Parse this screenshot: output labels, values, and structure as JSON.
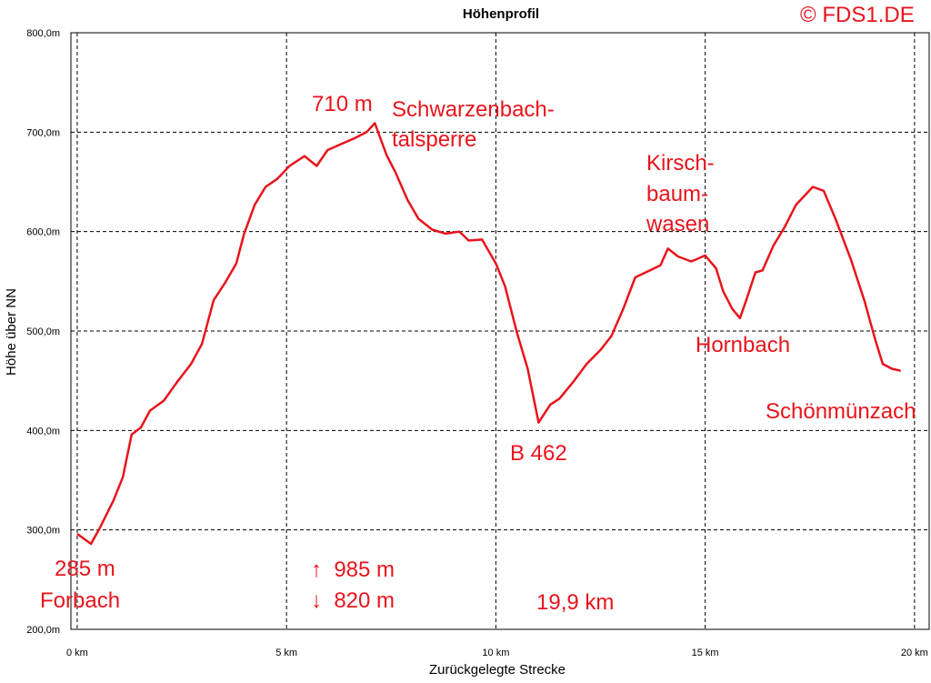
{
  "chart_data": {
    "type": "line",
    "title": "Höhenprofil",
    "x_label": "Zurückgelegte Strecke",
    "y_label": "Höhe über NN",
    "x": [
      0,
      0.33,
      0.54,
      0.87,
      1.09,
      1.3,
      1.52,
      1.74,
      2.07,
      2.39,
      2.72,
      2.98,
      3.26,
      3.54,
      3.8,
      3.98,
      4.24,
      4.5,
      4.78,
      5.07,
      5.43,
      5.72,
      5.98,
      6.3,
      6.63,
      6.91,
      7.11,
      7.39,
      7.61,
      7.89,
      8.15,
      8.48,
      8.8,
      9.13,
      9.35,
      9.67,
      10.0,
      10.22,
      10.5,
      10.76,
      11.02,
      11.3,
      11.52,
      11.85,
      12.17,
      12.5,
      12.76,
      13.04,
      13.33,
      13.63,
      13.93,
      14.11,
      14.35,
      14.67,
      15.0,
      15.26,
      15.43,
      15.65,
      15.83,
      15.98,
      16.2,
      16.37,
      16.63,
      16.89,
      17.17,
      17.57,
      17.83,
      18.11,
      18.48,
      18.8,
      19.07,
      19.24,
      19.46,
      19.67
    ],
    "values": [
      296,
      286,
      302,
      330,
      353,
      396,
      403,
      420,
      430,
      449,
      467,
      487,
      531,
      549,
      568,
      597,
      627,
      645,
      653,
      666,
      676,
      666,
      682,
      688,
      694,
      700,
      709,
      677,
      659,
      632,
      613,
      602,
      598,
      600,
      591,
      592,
      568,
      545,
      499,
      462,
      408,
      426,
      432,
      449,
      467,
      481,
      495,
      522,
      554,
      560,
      566,
      583,
      575,
      570,
      576,
      563,
      540,
      522,
      513,
      531,
      559,
      561,
      586,
      604,
      627,
      645,
      641,
      613,
      572,
      531,
      490,
      467,
      462,
      460
    ],
    "color": "#e8141c",
    "xlim": [
      -0.15,
      20.35
    ],
    "ylim": [
      200,
      800
    ],
    "xticks": [
      {
        "value": 0,
        "label": "0 km"
      },
      {
        "value": 5,
        "label": "5 km"
      },
      {
        "value": 10,
        "label": "10 km"
      },
      {
        "value": 15,
        "label": "15 km"
      },
      {
        "value": 20,
        "label": "20 km"
      }
    ],
    "yticks": [
      {
        "value": 200,
        "label": "200,0m"
      },
      {
        "value": 300,
        "label": "300,0m"
      },
      {
        "value": 400,
        "label": "400,0m"
      },
      {
        "value": 500,
        "label": "500,0m"
      },
      {
        "value": 600,
        "label": "600,0m"
      },
      {
        "value": 700,
        "label": "700,0m"
      },
      {
        "value": 800,
        "label": "800,0m"
      }
    ],
    "grid": true,
    "annotations": [
      "710 m",
      "Schwarzenbach-",
      "talsperre",
      "Kirsch-",
      "baum-",
      "wasen",
      "Hornbach",
      "Schönmünzach",
      "B 462",
      "285 m",
      "Forbach",
      "↑  985 m",
      "↓  820 m",
      "19,9 km",
      "© FDS1.DE"
    ]
  }
}
